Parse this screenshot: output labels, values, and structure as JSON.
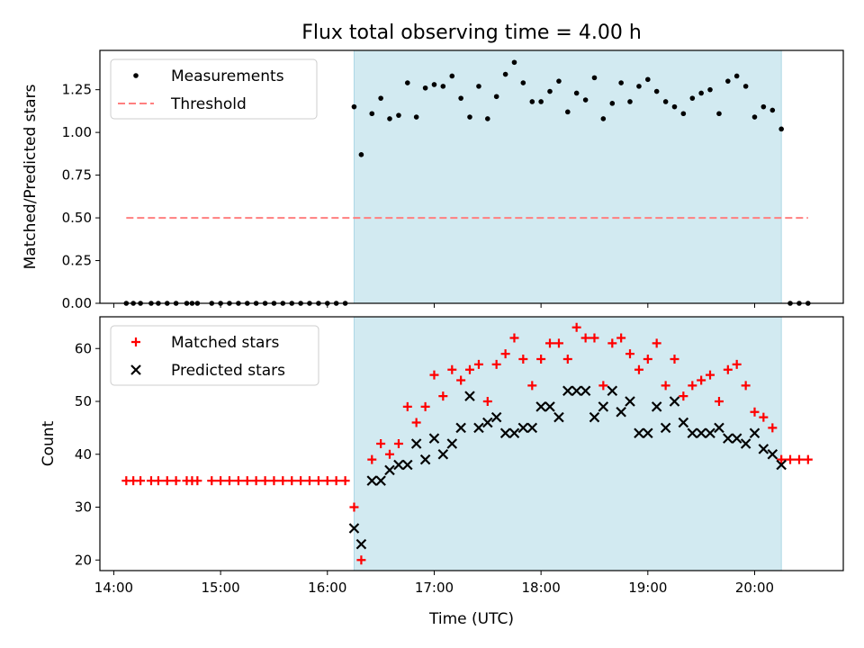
{
  "figure": {
    "title": "Flux total observing time = 4.00 h",
    "xlabel": "Time (UTC)"
  },
  "colors": {
    "shade": "#add8e6",
    "measurement": "#000000",
    "threshold": "#ff7f7f",
    "matched": "#ff0000",
    "predicted": "#000000"
  },
  "chart_data": [
    {
      "type": "scatter",
      "panel": "top",
      "ylabel": "Matched/Predicted stars",
      "xlim": [
        13.87,
        20.83
      ],
      "ylim": [
        0,
        1.48
      ],
      "xticks": [
        14,
        15,
        16,
        17,
        18,
        19,
        20
      ],
      "xtick_labels": [
        "14:00",
        "15:00",
        "16:00",
        "17:00",
        "18:00",
        "19:00",
        "20:00"
      ],
      "yticks": [
        0,
        0.25,
        0.5,
        0.75,
        1.0,
        1.25
      ],
      "ytick_labels": [
        "0.00",
        "0.25",
        "0.50",
        "0.75",
        "1.00",
        "1.25"
      ],
      "shaded_interval": [
        16.25,
        20.25
      ],
      "legend": {
        "placement": "top-left",
        "entries": [
          "Measurements",
          "Threshold"
        ]
      },
      "series": [
        {
          "name": "Measurements",
          "marker": "dot",
          "x": [
            14.117,
            14.183,
            14.25,
            14.35,
            14.417,
            14.5,
            14.583,
            14.683,
            14.733,
            14.783,
            14.917,
            15.0,
            15.083,
            15.167,
            15.25,
            15.333,
            15.417,
            15.5,
            15.583,
            15.667,
            15.75,
            15.833,
            15.917,
            16.0,
            16.083,
            16.167,
            16.25,
            16.317,
            16.417,
            16.5,
            16.583,
            16.667,
            16.75,
            16.833,
            16.917,
            17.0,
            17.083,
            17.167,
            17.25,
            17.333,
            17.417,
            17.5,
            17.583,
            17.667,
            17.75,
            17.833,
            17.917,
            18.0,
            18.083,
            18.167,
            18.25,
            18.333,
            18.417,
            18.5,
            18.583,
            18.667,
            18.75,
            18.833,
            18.917,
            19.0,
            19.083,
            19.167,
            19.25,
            19.333,
            19.417,
            19.5,
            19.583,
            19.667,
            19.75,
            19.833,
            19.917,
            20.0,
            20.083,
            20.167,
            20.25,
            20.333,
            20.417,
            20.5
          ],
          "y": [
            0,
            0,
            0,
            0,
            0,
            0,
            0,
            0,
            0,
            0,
            0,
            0,
            0,
            0,
            0,
            0,
            0,
            0,
            0,
            0,
            0,
            0,
            0,
            0,
            0,
            0,
            1.15,
            0.87,
            1.11,
            1.2,
            1.08,
            1.1,
            1.29,
            1.09,
            1.26,
            1.28,
            1.27,
            1.33,
            1.2,
            1.09,
            1.27,
            1.08,
            1.21,
            1.34,
            1.41,
            1.29,
            1.18,
            1.18,
            1.24,
            1.3,
            1.12,
            1.23,
            1.19,
            1.32,
            1.08,
            1.17,
            1.29,
            1.18,
            1.27,
            1.31,
            1.24,
            1.18,
            1.15,
            1.11,
            1.2,
            1.23,
            1.25,
            1.11,
            1.3,
            1.33,
            1.27,
            1.09,
            1.15,
            1.13,
            1.02,
            0,
            0,
            0
          ]
        },
        {
          "name": "Threshold",
          "style": "dashed-line",
          "x": [
            14.117,
            20.5
          ],
          "y": [
            0.5,
            0.5
          ]
        }
      ]
    },
    {
      "type": "scatter",
      "panel": "bottom",
      "ylabel": "Count",
      "xlim": [
        13.87,
        20.83
      ],
      "ylim": [
        18,
        66
      ],
      "xticks": [
        14,
        15,
        16,
        17,
        18,
        19,
        20
      ],
      "xtick_labels": [
        "14:00",
        "15:00",
        "16:00",
        "17:00",
        "18:00",
        "19:00",
        "20:00"
      ],
      "yticks": [
        20,
        30,
        40,
        50,
        60
      ],
      "ytick_labels": [
        "20",
        "30",
        "40",
        "50",
        "60"
      ],
      "shaded_interval": [
        16.25,
        20.25
      ],
      "legend": {
        "placement": "top-left",
        "entries": [
          "Matched stars",
          "Predicted stars"
        ]
      },
      "series": [
        {
          "name": "Matched stars",
          "marker": "plus",
          "x": [
            14.117,
            14.183,
            14.25,
            14.35,
            14.417,
            14.5,
            14.583,
            14.683,
            14.733,
            14.783,
            14.917,
            15.0,
            15.083,
            15.167,
            15.25,
            15.333,
            15.417,
            15.5,
            15.583,
            15.667,
            15.75,
            15.833,
            15.917,
            16.0,
            16.083,
            16.167,
            16.25,
            16.317,
            16.417,
            16.5,
            16.583,
            16.667,
            16.75,
            16.833,
            16.917,
            17.0,
            17.083,
            17.167,
            17.25,
            17.333,
            17.417,
            17.5,
            17.583,
            17.667,
            17.75,
            17.833,
            17.917,
            18.0,
            18.083,
            18.167,
            18.25,
            18.333,
            18.417,
            18.5,
            18.583,
            18.667,
            18.75,
            18.833,
            18.917,
            19.0,
            19.083,
            19.167,
            19.25,
            19.333,
            19.417,
            19.5,
            19.583,
            19.667,
            19.75,
            19.833,
            19.917,
            20.0,
            20.083,
            20.167,
            20.25,
            20.333,
            20.417,
            20.5
          ],
          "y": [
            35,
            35,
            35,
            35,
            35,
            35,
            35,
            35,
            35,
            35,
            35,
            35,
            35,
            35,
            35,
            35,
            35,
            35,
            35,
            35,
            35,
            35,
            35,
            35,
            35,
            35,
            30,
            20,
            39,
            42,
            40,
            42,
            49,
            46,
            49,
            55,
            51,
            56,
            54,
            56,
            57,
            50,
            57,
            59,
            62,
            58,
            53,
            58,
            61,
            61,
            58,
            64,
            62,
            62,
            53,
            61,
            62,
            59,
            56,
            58,
            61,
            53,
            58,
            51,
            53,
            54,
            55,
            50,
            56,
            57,
            53,
            48,
            47,
            45,
            39,
            39,
            39,
            39
          ]
        },
        {
          "name": "Predicted stars",
          "marker": "x",
          "x": [
            16.25,
            16.317,
            16.417,
            16.5,
            16.583,
            16.667,
            16.75,
            16.833,
            16.917,
            17.0,
            17.083,
            17.167,
            17.25,
            17.333,
            17.417,
            17.5,
            17.583,
            17.667,
            17.75,
            17.833,
            17.917,
            18.0,
            18.083,
            18.167,
            18.25,
            18.333,
            18.417,
            18.5,
            18.583,
            18.667,
            18.75,
            18.833,
            18.917,
            19.0,
            19.083,
            19.167,
            19.25,
            19.333,
            19.417,
            19.5,
            19.583,
            19.667,
            19.75,
            19.833,
            19.917,
            20.0,
            20.083,
            20.167,
            20.25
          ],
          "y": [
            26,
            23,
            35,
            35,
            37,
            38,
            38,
            42,
            39,
            43,
            40,
            42,
            45,
            51,
            45,
            46,
            47,
            44,
            44,
            45,
            45,
            49,
            49,
            47,
            52,
            52,
            52,
            47,
            49,
            52,
            48,
            50,
            44,
            44,
            49,
            45,
            50,
            46,
            44,
            44,
            44,
            45,
            43,
            43,
            42,
            44,
            41,
            40,
            38
          ]
        }
      ]
    }
  ]
}
